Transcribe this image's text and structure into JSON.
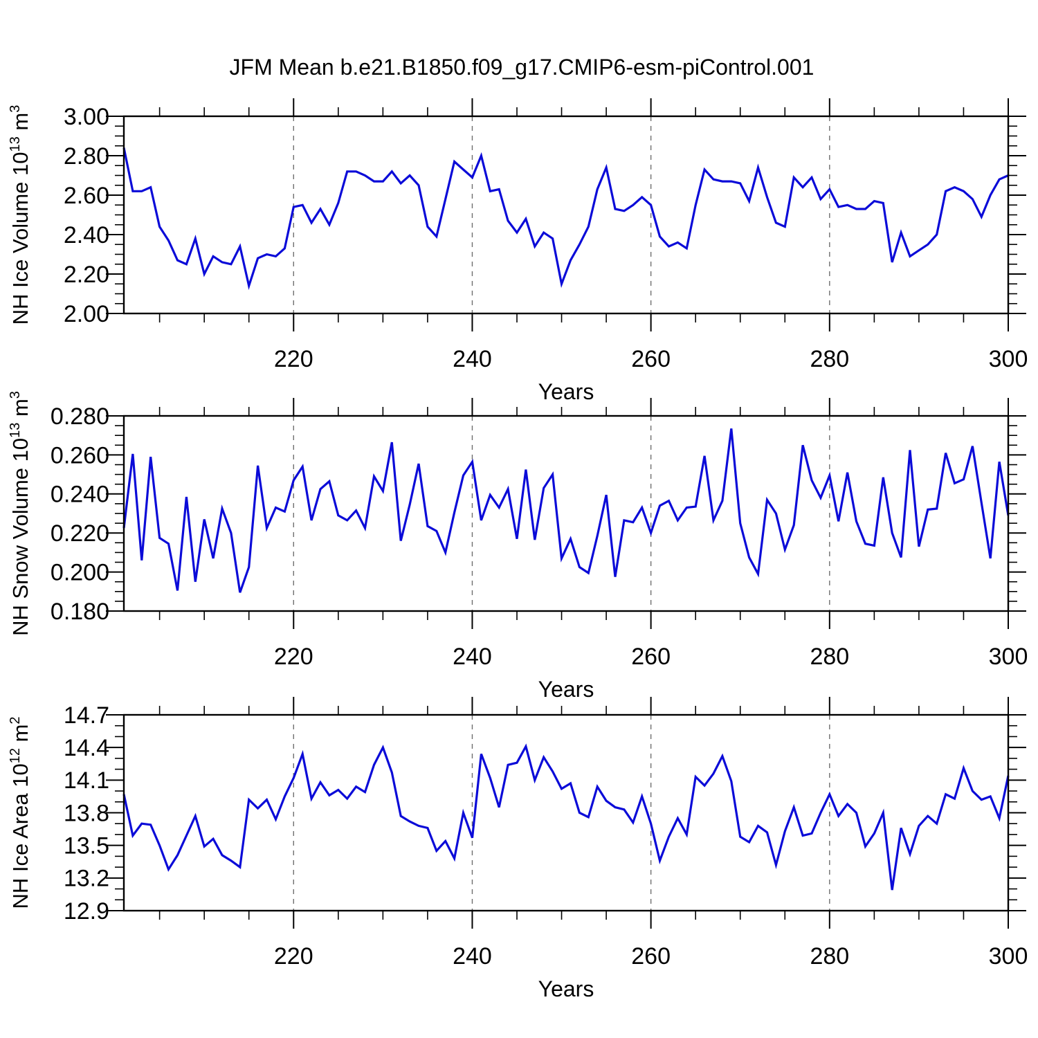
{
  "title": "JFM Mean b.e21.B1850.f09_g17.CMIP6-esm-piControl.001",
  "line_color": "#0b0bd8",
  "grid_color": "#6e6e6e",
  "chart_data": [
    {
      "type": "line",
      "id": "nh-ice-volume",
      "ylabel": "NH Ice Volume 10^13 m^3",
      "ylabel_rich": [
        {
          "t": "NH Ice Volume 10"
        },
        {
          "t": "13",
          "sup": true
        },
        {
          "t": " m"
        },
        {
          "t": "3",
          "sup": true
        }
      ],
      "xlabel": "Years",
      "x": {
        "start": 201,
        "end": 300,
        "major_ticks": [
          220,
          240,
          260,
          280,
          300
        ],
        "minor_step": 5,
        "grid_at": [
          220,
          240,
          260,
          280
        ]
      },
      "x_tick_labels": [
        "220",
        "240",
        "260",
        "280",
        "300"
      ],
      "ylim": [
        2.0,
        3.0
      ],
      "y_major_step": 0.2,
      "y_minor_step": 0.05,
      "y_decimals": 2,
      "values": [
        2.84,
        2.62,
        2.62,
        2.64,
        2.44,
        2.37,
        2.27,
        2.25,
        2.38,
        2.2,
        2.29,
        2.26,
        2.25,
        2.34,
        2.14,
        2.28,
        2.3,
        2.29,
        2.33,
        2.54,
        2.55,
        2.46,
        2.53,
        2.45,
        2.56,
        2.72,
        2.72,
        2.7,
        2.67,
        2.67,
        2.72,
        2.66,
        2.7,
        2.65,
        2.44,
        2.39,
        2.58,
        2.77,
        2.73,
        2.69,
        2.8,
        2.62,
        2.63,
        2.47,
        2.41,
        2.48,
        2.34,
        2.41,
        2.38,
        2.15,
        2.27,
        2.35,
        2.44,
        2.63,
        2.74,
        2.53,
        2.52,
        2.55,
        2.59,
        2.55,
        2.39,
        2.34,
        2.36,
        2.33,
        2.55,
        2.73,
        2.68,
        2.67,
        2.67,
        2.66,
        2.57,
        2.74,
        2.59,
        2.46,
        2.44,
        2.69,
        2.64,
        2.69,
        2.58,
        2.63,
        2.54,
        2.55,
        2.53,
        2.53,
        2.57,
        2.56,
        2.26,
        2.41,
        2.29,
        2.32,
        2.35,
        2.4,
        2.62,
        2.64,
        2.62,
        2.58,
        2.49,
        2.6,
        2.68,
        2.7
      ]
    },
    {
      "type": "line",
      "id": "nh-snow-volume",
      "ylabel": "NH Snow Volume 10^13 m^3",
      "ylabel_rich": [
        {
          "t": "NH Snow Volume 10"
        },
        {
          "t": "13",
          "sup": true
        },
        {
          "t": " m"
        },
        {
          "t": "3",
          "sup": true
        }
      ],
      "xlabel": "Years",
      "x": {
        "start": 201,
        "end": 300,
        "major_ticks": [
          220,
          240,
          260,
          280,
          300
        ],
        "minor_step": 5,
        "grid_at": [
          220,
          240,
          260,
          280
        ]
      },
      "x_tick_labels": [
        "220",
        "240",
        "260",
        "280",
        "300"
      ],
      "ylim": [
        0.18,
        0.28
      ],
      "y_major_step": 0.02,
      "y_minor_step": 0.005,
      "y_decimals": 3,
      "values": [
        0.2225,
        0.2605,
        0.206,
        0.259,
        0.2175,
        0.2145,
        0.1905,
        0.2385,
        0.195,
        0.227,
        0.207,
        0.2325,
        0.22,
        0.1895,
        0.2025,
        0.2545,
        0.2225,
        0.233,
        0.231,
        0.247,
        0.254,
        0.2265,
        0.2425,
        0.2465,
        0.229,
        0.2265,
        0.2315,
        0.2225,
        0.249,
        0.2415,
        0.2665,
        0.216,
        0.2345,
        0.2555,
        0.2235,
        0.221,
        0.21,
        0.2305,
        0.2495,
        0.2565,
        0.2265,
        0.2395,
        0.233,
        0.2425,
        0.217,
        0.2525,
        0.2165,
        0.243,
        0.25,
        0.207,
        0.217,
        0.2025,
        0.1995,
        0.2185,
        0.2395,
        0.1975,
        0.2265,
        0.2255,
        0.233,
        0.22,
        0.234,
        0.2365,
        0.2265,
        0.233,
        0.2335,
        0.2595,
        0.2265,
        0.2365,
        0.2735,
        0.225,
        0.2075,
        0.199,
        0.237,
        0.23,
        0.2115,
        0.224,
        0.265,
        0.247,
        0.238,
        0.2495,
        0.226,
        0.251,
        0.226,
        0.2145,
        0.2135,
        0.2485,
        0.22,
        0.2075,
        0.2625,
        0.213,
        0.232,
        0.2325,
        0.261,
        0.2455,
        0.2475,
        0.2645,
        0.2355,
        0.207,
        0.2565,
        0.229
      ]
    },
    {
      "type": "line",
      "id": "nh-ice-area",
      "ylabel": "NH Ice Area 10^12 m^2",
      "ylabel_rich": [
        {
          "t": "NH Ice Area 10"
        },
        {
          "t": "12",
          "sup": true
        },
        {
          "t": " m"
        },
        {
          "t": "2",
          "sup": true
        }
      ],
      "xlabel": "Years",
      "x": {
        "start": 201,
        "end": 300,
        "major_ticks": [
          220,
          240,
          260,
          280,
          300
        ],
        "minor_step": 5,
        "grid_at": [
          220,
          240,
          260,
          280
        ]
      },
      "x_tick_labels": [
        "220",
        "240",
        "260",
        "280",
        "300"
      ],
      "ylim": [
        12.9,
        14.7
      ],
      "y_major_step": 0.3,
      "y_minor_step": 0.1,
      "y_decimals": 1,
      "values": [
        13.97,
        13.59,
        13.7,
        13.69,
        13.5,
        13.28,
        13.41,
        13.59,
        13.77,
        13.49,
        13.56,
        13.41,
        13.36,
        13.3,
        13.92,
        13.84,
        13.92,
        13.74,
        13.95,
        14.12,
        14.34,
        13.93,
        14.08,
        13.96,
        14.01,
        13.93,
        14.04,
        13.99,
        14.24,
        14.4,
        14.17,
        13.77,
        13.72,
        13.68,
        13.66,
        13.45,
        13.54,
        13.38,
        13.8,
        13.57,
        14.34,
        14.12,
        13.85,
        14.24,
        14.26,
        14.41,
        14.1,
        14.31,
        14.18,
        14.02,
        14.07,
        13.8,
        13.76,
        14.04,
        13.91,
        13.85,
        13.83,
        13.71,
        13.95,
        13.7,
        13.36,
        13.58,
        13.75,
        13.6,
        14.13,
        14.05,
        14.16,
        14.32,
        14.09,
        13.58,
        13.53,
        13.68,
        13.62,
        13.32,
        13.63,
        13.85,
        13.59,
        13.61,
        13.8,
        13.97,
        13.77,
        13.88,
        13.8,
        13.49,
        13.61,
        13.8,
        13.09,
        13.66,
        13.42,
        13.68,
        13.77,
        13.7,
        13.97,
        13.93,
        14.21,
        14.0,
        13.92,
        13.95,
        13.75,
        14.14
      ]
    }
  ]
}
